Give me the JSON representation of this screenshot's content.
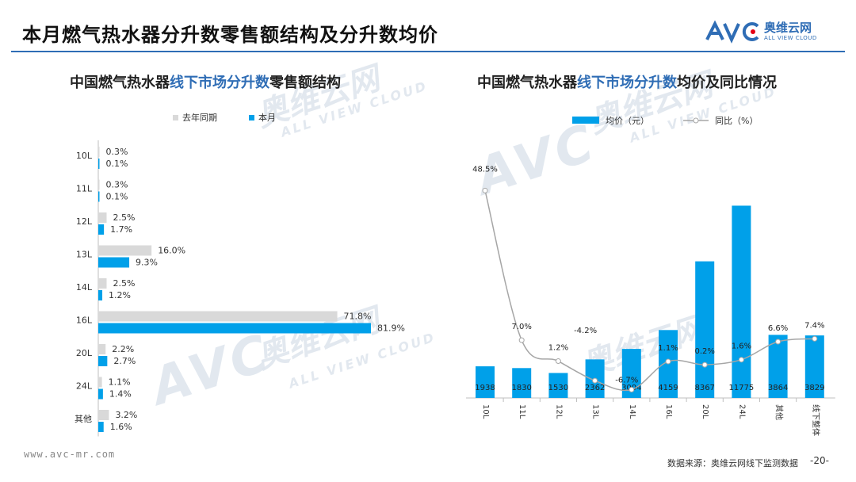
{
  "header": {
    "title": "本月燃气热水器分升数零售额结构及分升数均价",
    "logo_cn": "奥维云网",
    "logo_en": "ALL VIEW CLOUD"
  },
  "left_chart": {
    "title_pre": "中国燃气热水器",
    "title_hl": "线下市场分升数",
    "title_post": "零售额结构"
  },
  "right_chart": {
    "title_pre": "中国燃气热水器",
    "title_hl": "线下市场分升数",
    "title_post": "均价及同比情况"
  },
  "watermark": {
    "brand": "AVC",
    "cn": "奥维云网",
    "en": "ALL VIEW CLOUD"
  },
  "footer": {
    "url": "www.avc-mr.com",
    "source": "数据来源：奥维云网线下监测数据",
    "page": "-20-"
  },
  "colors": {
    "accent": "#00a0e9",
    "gray_bar": "#d9d9d9",
    "line": "#a6a6a6",
    "brand_blue": "#2f6db5"
  },
  "chart_data": [
    {
      "type": "bar",
      "orientation": "horizontal",
      "categories": [
        "10L",
        "11L",
        "12L",
        "13L",
        "14L",
        "16L",
        "20L",
        "24L",
        "其他"
      ],
      "series": [
        {
          "name": "去年同期",
          "color": "#d9d9d9",
          "values": [
            0.3,
            0.3,
            2.5,
            16.0,
            2.5,
            71.8,
            2.2,
            1.1,
            3.2
          ]
        },
        {
          "name": "本月",
          "color": "#00a0e9",
          "values": [
            0.1,
            0.1,
            1.7,
            9.3,
            1.2,
            81.9,
            2.7,
            1.4,
            1.6
          ]
        }
      ],
      "unit": "%",
      "legend": "top-left"
    },
    {
      "type": "bar+line",
      "categories": [
        "10L",
        "11L",
        "12L",
        "13L",
        "14L",
        "16L",
        "20L",
        "24L",
        "其他",
        "线下整体"
      ],
      "series": [
        {
          "name": "均价（元）",
          "kind": "bar",
          "color": "#00a0e9",
          "values": [
            1938,
            1830,
            1530,
            2362,
            3004,
            4159,
            8367,
            11775,
            3864,
            3829
          ]
        },
        {
          "name": "同比（%）",
          "kind": "line",
          "color": "#a6a6a6",
          "values": [
            48.5,
            7.0,
            1.2,
            -4.2,
            -6.7,
            1.1,
            0.2,
            1.6,
            6.6,
            7.4
          ]
        }
      ],
      "legend": "top"
    }
  ]
}
